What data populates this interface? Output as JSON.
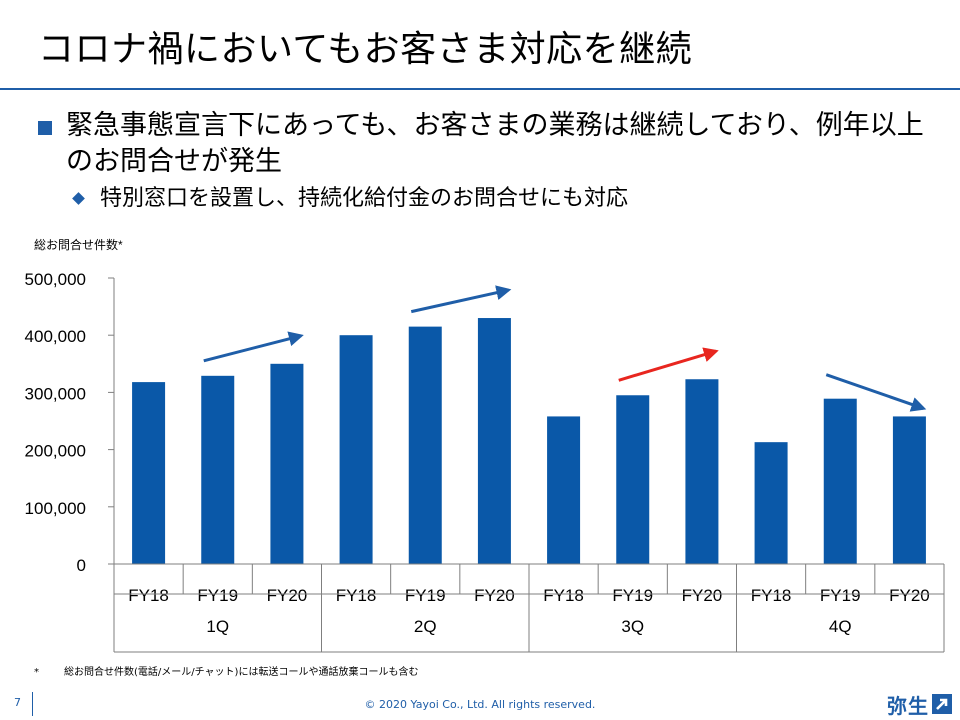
{
  "slide": {
    "title": "コロナ禍においてもお客さま対応を継続",
    "bullet1": "緊急事態宣言下にあっても、お客さまの業務は継続しており、例年以上のお問合せが発生",
    "bullet2": "特別窓口を設置し、持続化給付金のお問合せにも対応"
  },
  "chart_data": {
    "type": "bar",
    "title": "総お問合せ件数*",
    "groups": [
      {
        "label": "1Q",
        "items": [
          {
            "label": "FY18",
            "value": 318000
          },
          {
            "label": "FY19",
            "value": 329000
          },
          {
            "label": "FY20",
            "value": 350000
          }
        ]
      },
      {
        "label": "2Q",
        "items": [
          {
            "label": "FY18",
            "value": 400000
          },
          {
            "label": "FY19",
            "value": 415000
          },
          {
            "label": "FY20",
            "value": 430000
          }
        ]
      },
      {
        "label": "3Q",
        "items": [
          {
            "label": "FY18",
            "value": 258000
          },
          {
            "label": "FY19",
            "value": 295000
          },
          {
            "label": "FY20",
            "value": 323000
          }
        ]
      },
      {
        "label": "4Q",
        "items": [
          {
            "label": "FY18",
            "value": 213000
          },
          {
            "label": "FY19",
            "value": 289000
          },
          {
            "label": "FY20",
            "value": 258000
          }
        ]
      }
    ],
    "ylim": [
      0,
      500000
    ],
    "yticks": [
      "0",
      "100,000",
      "200,000",
      "300,000",
      "400,000",
      "500,000"
    ],
    "ytick_values": [
      0,
      100000,
      200000,
      300000,
      400000,
      500000
    ],
    "trend_arrows": [
      {
        "group": "1Q",
        "direction": "up",
        "color": "#1f5ea8"
      },
      {
        "group": "2Q",
        "direction": "up",
        "color": "#1f5ea8"
      },
      {
        "group": "3Q",
        "direction": "up",
        "color": "#e8261f"
      },
      {
        "group": "4Q",
        "direction": "down",
        "color": "#1f5ea8"
      }
    ],
    "bar_color": "#0a58a8",
    "grid": false
  },
  "note": {
    "mark": "*",
    "text": "総お問合せ件数(電話/メール/チャット)には転送コールや通話放棄コールも含む"
  },
  "footer": {
    "page": "7",
    "copyright": "© 2020 Yayoi Co., Ltd.  All rights reserved.",
    "logo_text": "弥生"
  }
}
